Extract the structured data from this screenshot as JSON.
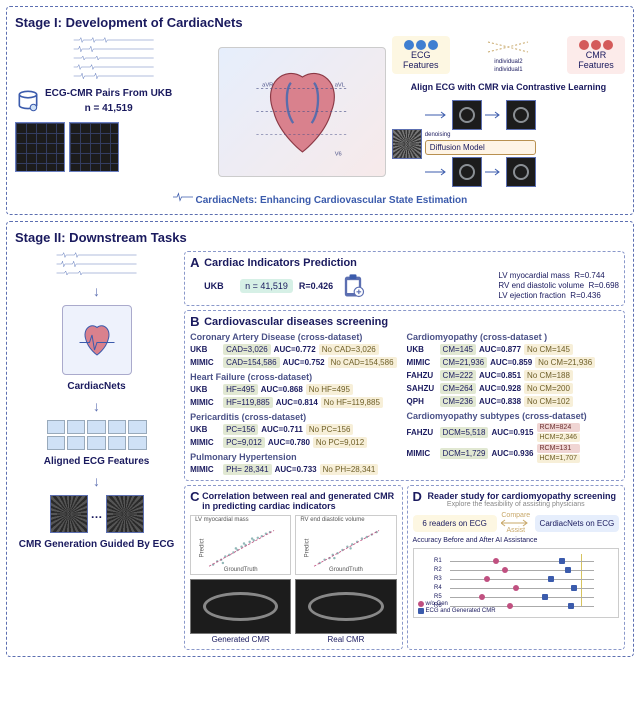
{
  "colors": {
    "dash_border": "#5c6fb1",
    "panel_border": "#8a98ca",
    "text": "#1a1a5e",
    "accent_blue": "#3b5bac",
    "pos_bg": "#e1e8d2",
    "neg_bg": "#f7efd8",
    "ecg_bg": "#fdf7e2",
    "cmr_bg": "#fcebea",
    "aligned_cell": "#cfe1f6",
    "circle_blue": "#3f7fd1",
    "circle_red": "#d45a5a",
    "reader_ci": "#c05080",
    "reader_sq": "#3b5bac",
    "vline": "#d6c35e"
  },
  "stage1": {
    "title": "Stage I:   Development of CardiacNets",
    "pair_label": "ECG-CMR Pairs From UKB",
    "pair_n": "n = 41,519",
    "align_left": "ECG Features",
    "align_right": "CMR Features",
    "align_mid_labels": [
      "individual2",
      "individual1",
      "individual3"
    ],
    "align_title": "Align ECG with CMR via Contrastive Learning",
    "diffusion_label": "Diffusion Model",
    "denoising_label": "denoising",
    "footer": "CardiacNets: Enhancing Cardiovascular State Estimation"
  },
  "stage2": {
    "title": "Stage II:  Downstream Tasks",
    "left": {
      "cardiacnets": "CardiacNets",
      "aligned": "Aligned ECG Features",
      "cmrgen": "CMR Generation Guided By ECG"
    },
    "panelA": {
      "letter": "A",
      "title": "Cardiac Indicators  Prediction",
      "ukb_tag": "n = 41,519",
      "ukb_r": "R=0.426",
      "src": "UKB",
      "indicators": [
        {
          "name": "LV myocardial mass",
          "r": "R=0.744"
        },
        {
          "name": "RV end diastolic volume",
          "r": "R=0.698"
        },
        {
          "name": "LV ejection fraction",
          "r": "R=0.436"
        }
      ]
    },
    "panelB": {
      "letter": "B",
      "title": "Cardiovascular diseases screening",
      "left_sections": [
        {
          "title": "Coronary Artery Disease (cross-dataset)",
          "rows": [
            {
              "src": "UKB",
              "pos": "CAD=3,026",
              "auc": "AUC=0.772",
              "neg": "No CAD=3,026"
            },
            {
              "src": "MIMIC",
              "pos": "CAD=154,586",
              "auc": "AUC=0.752",
              "neg": "No CAD=154,586"
            }
          ]
        },
        {
          "title": "Heart Failure (cross-dataset)",
          "rows": [
            {
              "src": "UKB",
              "pos": "HF=495",
              "auc": "AUC=0.868",
              "neg": "No HF=495"
            },
            {
              "src": "MIMIC",
              "pos": "HF=119,885",
              "auc": "AUC=0.814",
              "neg": "No HF=119,885"
            }
          ]
        },
        {
          "title": "Pericarditis (cross-dataset)",
          "rows": [
            {
              "src": "UKB",
              "pos": "PC=156",
              "auc": "AUC=0.711",
              "neg": "No PC=156"
            },
            {
              "src": "MIMIC",
              "pos": "PC=9,012",
              "auc": "AUC=0.780",
              "neg": "No PC=9,012"
            }
          ]
        },
        {
          "title": "Pulmonary Hypertension",
          "rows": [
            {
              "src": "MIMIC",
              "pos": "PH= 28,341",
              "auc": "AUC=0.733",
              "neg": "No PH=28,341"
            }
          ]
        }
      ],
      "right_sections": [
        {
          "title": "Cardiomyopathy (cross-dataset )",
          "rows": [
            {
              "src": "UKB",
              "pos": "CM=145",
              "auc": "AUC=0.877",
              "neg": "No CM=145"
            },
            {
              "src": "MIMIC",
              "pos": "CM=21,936",
              "auc": "AUC=0.859",
              "neg": "No CM=21,936"
            },
            {
              "src": "FAHZU",
              "pos": "CM=222",
              "auc": "AUC=0.851",
              "neg": "No CM=188"
            },
            {
              "src": "SAHZU",
              "pos": "CM=264",
              "auc": "AUC=0.928",
              "neg": "No CM=200"
            },
            {
              "src": "QPH",
              "pos": "CM=236",
              "auc": "AUC=0.838",
              "neg": "No CM=102"
            }
          ]
        },
        {
          "title": "Cardiomyopathy subtypes (cross-dataset)",
          "rows": []
        }
      ],
      "subtype_rows": [
        {
          "src": "FAHZU",
          "pos": "DCM=5,518",
          "auc": "AUC=0.915",
          "extra": [
            {
              "label": "RCM=824",
              "cls": "ds-rcm"
            },
            {
              "label": "HCM=2,346",
              "cls": "ds-neg"
            }
          ]
        },
        {
          "src": "MIMIC",
          "pos": "DCM=1,729",
          "auc": "AUC=0.936",
          "extra": [
            {
              "label": "RCM=131",
              "cls": "ds-rcm"
            },
            {
              "label": "HCM=1,707",
              "cls": "ds-neg"
            }
          ]
        }
      ]
    },
    "panelC": {
      "letter": "C",
      "title": "Correlation between real and generated CMR in predicting cardiac indicators",
      "scatter_titles": [
        "LV myocardial mass",
        "RV end diastolic volume"
      ],
      "axis_y": "Predict",
      "axis_x": "GroundTruth",
      "gen_label": "Generated CMR",
      "real_label": "Real CMR"
    },
    "panelD": {
      "letter": "D",
      "title": "Reader study for cardiomyopathy screening",
      "subtitle": "Explore the feasibility of assisting physicians",
      "left_box": "6 readers on ECG",
      "mid_top": "Compare",
      "mid_bot": "Assist",
      "right_box": "CardiacNets on ECG",
      "chart_title": "Accuracy Before and After AI Assistance",
      "readers": [
        "R1",
        "R2",
        "R3",
        "R4",
        "R5",
        "R6"
      ],
      "before": [
        0.55,
        0.58,
        0.52,
        0.62,
        0.5,
        0.6
      ],
      "after": [
        0.78,
        0.8,
        0.74,
        0.82,
        0.72,
        0.81
      ],
      "xlim": [
        0.4,
        0.9
      ],
      "vline_at": 0.85,
      "legend": [
        "w/o Gen",
        "ECG and Generated CMR",
        "ECG and Real CMR",
        "Mask Performance"
      ]
    }
  }
}
